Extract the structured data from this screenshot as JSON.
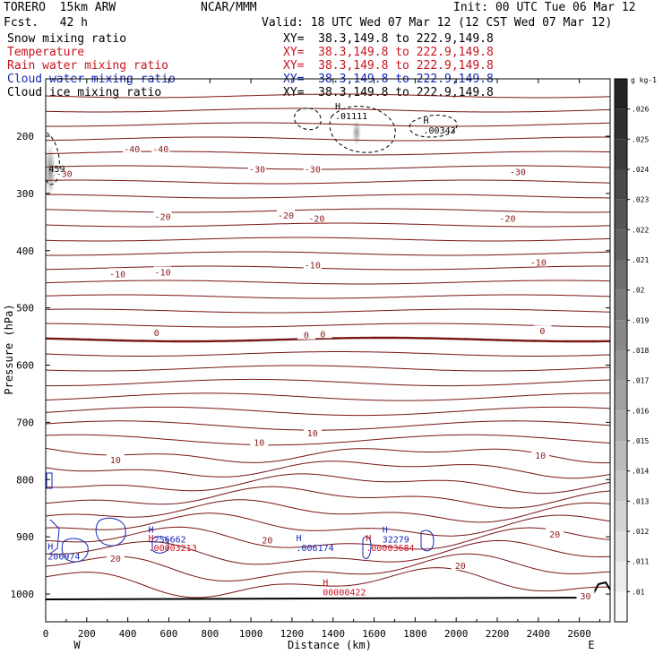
{
  "header": {
    "model": "TORERO  15km ARW",
    "forecast": "Fcst.   42 h",
    "center": "NCAR/MMM",
    "init": "Init: 00 UTC Tue 06 Mar 12",
    "valid": "Valid: 18 UTC Wed 07 Mar 12 (12 CST Wed 07 Mar 12)"
  },
  "legend": [
    {
      "label": "Snow mixing ratio",
      "xy": "XY=  38.3,149.8 to 222.9,149.8",
      "color": "#000000"
    },
    {
      "label": "Temperature",
      "xy": "XY=  38.3,149.8 to 222.9,149.8",
      "color": "#c8141e"
    },
    {
      "label": "Rain water mixing ratio",
      "xy": "XY=  38.3,149.8 to 222.9,149.8",
      "color": "#c8141e"
    },
    {
      "label": "Cloud water mixing ratio",
      "xy": "XY=  38.3,149.8 to 222.9,149.8",
      "color": "#1428b4"
    },
    {
      "label": "Cloud ice mixing ratio",
      "xy": "XY=  38.3,149.8 to 222.9,149.8",
      "color": "#000000"
    }
  ],
  "chart_data": {
    "type": "contour-cross-section",
    "xlabel": "Distance (km)",
    "ylabel": "Pressure (hPa)",
    "x_ticks": [
      0,
      200,
      400,
      600,
      800,
      1000,
      1200,
      1400,
      1600,
      1800,
      2000,
      2200,
      2400,
      2600
    ],
    "xlim": [
      0,
      2750
    ],
    "y_ticks": [
      200,
      300,
      400,
      500,
      600,
      700,
      800,
      900,
      1000
    ],
    "ylim": [
      1050,
      100
    ],
    "direction_left": "W",
    "direction_right": "E",
    "colorbar": {
      "unit": "g kg-1",
      "ticks": [
        ".01",
        ".011",
        ".012",
        ".013",
        ".014",
        ".015",
        ".016",
        ".017",
        ".018",
        ".019",
        ".02",
        ".021",
        ".022",
        ".023",
        ".024",
        ".025",
        ".026"
      ]
    },
    "temperature_labels": [
      {
        "value": "-40",
        "x": 420,
        "p": 222
      },
      {
        "value": "-40",
        "x": 560,
        "p": 222
      },
      {
        "value": "-30",
        "x": 90,
        "p": 265
      },
      {
        "value": "-30",
        "x": 1030,
        "p": 257
      },
      {
        "value": "-30",
        "x": 1300,
        "p": 257
      },
      {
        "value": "-30",
        "x": 2300,
        "p": 262
      },
      {
        "value": "-20",
        "x": 570,
        "p": 340
      },
      {
        "value": "-20",
        "x": 1170,
        "p": 338
      },
      {
        "value": "-20",
        "x": 1320,
        "p": 343
      },
      {
        "value": "-20",
        "x": 2250,
        "p": 343
      },
      {
        "value": "-10",
        "x": 350,
        "p": 440
      },
      {
        "value": "-10",
        "x": 570,
        "p": 437
      },
      {
        "value": "-10",
        "x": 1300,
        "p": 425
      },
      {
        "value": "-10",
        "x": 2400,
        "p": 420
      },
      {
        "value": "0",
        "x": 540,
        "p": 543
      },
      {
        "value": "0",
        "x": 1270,
        "p": 547
      },
      {
        "value": "0",
        "x": 1350,
        "p": 545
      },
      {
        "value": "0",
        "x": 2420,
        "p": 540
      },
      {
        "value": "10",
        "x": 340,
        "p": 765
      },
      {
        "value": "10",
        "x": 1040,
        "p": 735
      },
      {
        "value": "10",
        "x": 1300,
        "p": 718
      },
      {
        "value": "10",
        "x": 2410,
        "p": 757
      },
      {
        "value": "20",
        "x": 340,
        "p": 937
      },
      {
        "value": "20",
        "x": 1080,
        "p": 905
      },
      {
        "value": "20",
        "x": 2020,
        "p": 950
      },
      {
        "value": "20",
        "x": 2480,
        "p": 895
      },
      {
        "value": "30",
        "x": 2630,
        "p": 1003
      }
    ],
    "maxima": [
      {
        "label": "H",
        "value": ".01111",
        "x": 1410,
        "p": 170,
        "color": "#000000"
      },
      {
        "label": "H",
        "value": ".00343",
        "x": 1840,
        "p": 195,
        "color": "#000000"
      },
      {
        "label": "",
        "value": "459",
        "x": 15,
        "p": 263,
        "color": "#000000"
      },
      {
        "label": "H",
        "value": ".256662",
        "x": 500,
        "p": 910,
        "color": "#1428b4"
      },
      {
        "label": "H",
        "value": ".00003213",
        "x": 500,
        "p": 925,
        "color": "#c8141e"
      },
      {
        "label": "H",
        "value": "206974",
        "x": 10,
        "p": 940,
        "color": "#1428b4"
      },
      {
        "label": "H",
        "value": ".006174",
        "x": 1220,
        "p": 925,
        "color": "#1428b4"
      },
      {
        "label": "H",
        "value": "32279",
        "x": 1640,
        "p": 910,
        "color": "#1428b4"
      },
      {
        "label": "H",
        "value": ".00003684",
        "x": 1560,
        "p": 925,
        "color": "#c8141e"
      },
      {
        "label": "H",
        "value": "00000422",
        "x": 1350,
        "p": 1002,
        "color": "#c8141e"
      }
    ]
  }
}
